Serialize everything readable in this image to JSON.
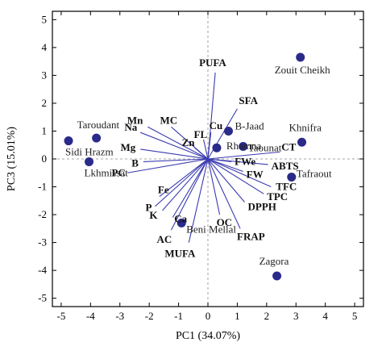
{
  "chart_data": {
    "type": "scatter",
    "subtype": "biplot",
    "xlabel": "PC1 (34.07%)",
    "ylabel": "PC3 (15.01%)",
    "xlim": [
      -5.3,
      5.3
    ],
    "ylim": [
      -5.3,
      5.3
    ],
    "xticks": [
      -5,
      -4,
      -3,
      -2,
      -1,
      0,
      1,
      2,
      3,
      4,
      5
    ],
    "yticks": [
      -5,
      -4,
      -3,
      -2,
      -1,
      0,
      1,
      2,
      3,
      4,
      5
    ],
    "origin_reference_lines": true,
    "colors": {
      "vector": "#3b3bb0",
      "point": "#2a2a8a"
    },
    "loadings": [
      {
        "name": "PUFA",
        "x": 0.25,
        "y": 3.1
      },
      {
        "name": "SFA",
        "x": 1.0,
        "y": 1.8
      },
      {
        "name": "Mn",
        "x": -2.05,
        "y": 1.15
      },
      {
        "name": "MC",
        "x": -1.25,
        "y": 1.15
      },
      {
        "name": "Na",
        "x": -2.3,
        "y": 0.95
      },
      {
        "name": "FL",
        "x": -0.15,
        "y": 0.7
      },
      {
        "name": "Cu",
        "x": 0.1,
        "y": 0.95
      },
      {
        "name": "Zn",
        "x": -0.45,
        "y": 0.4
      },
      {
        "name": "Mg",
        "x": -2.3,
        "y": 0.35
      },
      {
        "name": "B",
        "x": -2.2,
        "y": -0.1
      },
      {
        "name": "PC",
        "x": -2.75,
        "y": -0.5
      },
      {
        "name": "FWe",
        "x": 0.8,
        "y": -0.1
      },
      {
        "name": "FW",
        "x": 1.2,
        "y": -0.45
      },
      {
        "name": "CT",
        "x": 2.45,
        "y": 0.25
      },
      {
        "name": "ABTS",
        "x": 2.05,
        "y": -0.2
      },
      {
        "name": "TFC",
        "x": 2.15,
        "y": -1.0
      },
      {
        "name": "TPC",
        "x": 1.9,
        "y": -1.25
      },
      {
        "name": "DPPH",
        "x": 1.25,
        "y": -1.55
      },
      {
        "name": "OC",
        "x": 0.4,
        "y": -2.0
      },
      {
        "name": "FRAP",
        "x": 1.1,
        "y": -2.5
      },
      {
        "name": "MUFA",
        "x": -0.65,
        "y": -3.0
      },
      {
        "name": "AC",
        "x": -1.25,
        "y": -2.55
      },
      {
        "name": "Ca",
        "x": -1.2,
        "y": -2.1
      },
      {
        "name": "K",
        "x": -1.55,
        "y": -1.85
      },
      {
        "name": "P",
        "x": -1.8,
        "y": -1.7
      },
      {
        "name": "Fe",
        "x": -1.65,
        "y": -1.35
      }
    ],
    "scores": [
      {
        "name": "Zouit Cheikh",
        "x": 3.15,
        "y": 3.65
      },
      {
        "name": "Taroudant",
        "x": -3.8,
        "y": 0.75
      },
      {
        "name": "Sidi Hrazm",
        "x": -4.75,
        "y": 0.65
      },
      {
        "name": "Lkhmissat",
        "x": -4.05,
        "y": -0.1
      },
      {
        "name": "B-Jaad",
        "x": 0.7,
        "y": 1.0
      },
      {
        "name": "Rhamna",
        "x": 0.3,
        "y": 0.4
      },
      {
        "name": "Taounat",
        "x": 1.2,
        "y": 0.45
      },
      {
        "name": "Khnifra",
        "x": 3.2,
        "y": 0.6
      },
      {
        "name": "Tafraout",
        "x": 2.85,
        "y": -0.65
      },
      {
        "name": "Beni Mellal",
        "x": -0.9,
        "y": -2.3
      },
      {
        "name": "Zagora",
        "x": 2.35,
        "y": -4.2
      }
    ]
  }
}
